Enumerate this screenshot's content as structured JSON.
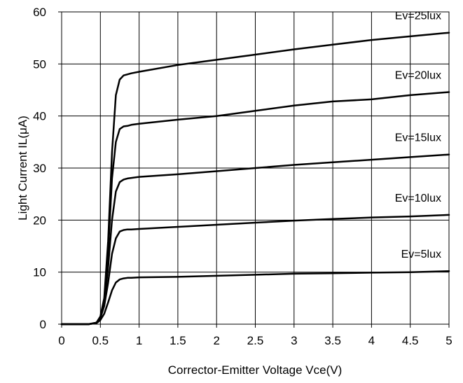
{
  "chart_data": {
    "type": "line",
    "title": "",
    "xlabel": "Corrector-Emitter Voltage Vce(V)",
    "ylabel_main": "Light Current IL",
    "ylabel_unit": "(μA)",
    "xlim": [
      0,
      5
    ],
    "ylim": [
      0,
      60
    ],
    "x_ticks": [
      "0",
      "0.5",
      "1",
      "1.5",
      "2",
      "2.5",
      "3",
      "3.5",
      "4",
      "4.5",
      "5"
    ],
    "y_ticks": [
      "0",
      "10",
      "20",
      "30",
      "40",
      "50",
      "60"
    ],
    "grid": true,
    "line_color": "#000000",
    "series": [
      {
        "name": "Ev=25lux",
        "x": [
          0,
          0.35,
          0.45,
          0.5,
          0.55,
          0.6,
          0.65,
          0.7,
          0.75,
          0.8,
          0.85,
          0.9,
          1.0,
          1.5,
          2.0,
          2.5,
          3.0,
          3.5,
          4.0,
          4.5,
          5.0
        ],
        "y": [
          0,
          0,
          0.3,
          1.5,
          5,
          16,
          33,
          44,
          47,
          47.8,
          48,
          48.2,
          48.5,
          49.8,
          50.8,
          51.8,
          52.8,
          53.7,
          54.6,
          55.3,
          56
        ]
      },
      {
        "name": "Ev=20lux",
        "x": [
          0,
          0.35,
          0.45,
          0.5,
          0.55,
          0.6,
          0.65,
          0.7,
          0.75,
          0.8,
          0.85,
          0.9,
          1.0,
          1.5,
          2.0,
          2.5,
          3.0,
          3.5,
          4.0,
          4.5,
          5.0
        ],
        "y": [
          0,
          0,
          0.3,
          1.4,
          4.5,
          14,
          28,
          35,
          37.5,
          38,
          38.1,
          38.3,
          38.5,
          39.3,
          40,
          41,
          42,
          42.8,
          43.2,
          44,
          44.6
        ]
      },
      {
        "name": "Ev=15lux",
        "x": [
          0,
          0.35,
          0.45,
          0.5,
          0.55,
          0.6,
          0.65,
          0.7,
          0.75,
          0.8,
          0.85,
          0.9,
          1.0,
          1.5,
          2.0,
          2.5,
          3.0,
          3.5,
          4.0,
          4.5,
          5.0
        ],
        "y": [
          0,
          0,
          0.3,
          1.3,
          4,
          11,
          20,
          25.5,
          27.3,
          27.8,
          28,
          28.1,
          28.3,
          28.8,
          29.4,
          30,
          30.6,
          31.1,
          31.6,
          32.1,
          32.6
        ]
      },
      {
        "name": "Ev=10lux",
        "x": [
          0,
          0.35,
          0.45,
          0.5,
          0.55,
          0.6,
          0.65,
          0.7,
          0.75,
          0.8,
          0.85,
          0.9,
          1.0,
          1.5,
          2.0,
          2.5,
          3.0,
          3.5,
          4.0,
          4.5,
          5.0
        ],
        "y": [
          0,
          0,
          0.3,
          1.2,
          3.5,
          8,
          13.5,
          16.5,
          17.8,
          18.1,
          18.2,
          18.2,
          18.3,
          18.7,
          19.1,
          19.5,
          19.9,
          20.2,
          20.5,
          20.7,
          21
        ]
      },
      {
        "name": "Ev=5lux",
        "x": [
          0,
          0.35,
          0.45,
          0.5,
          0.55,
          0.6,
          0.65,
          0.7,
          0.75,
          0.8,
          0.85,
          0.9,
          1.0,
          1.5,
          2.0,
          2.5,
          3.0,
          3.5,
          4.0,
          4.5,
          5.0
        ],
        "y": [
          0,
          0,
          0.2,
          0.8,
          2,
          4.2,
          6.5,
          8,
          8.6,
          8.8,
          8.9,
          8.9,
          9,
          9.1,
          9.3,
          9.5,
          9.7,
          9.8,
          9.9,
          10,
          10.2
        ]
      }
    ]
  }
}
